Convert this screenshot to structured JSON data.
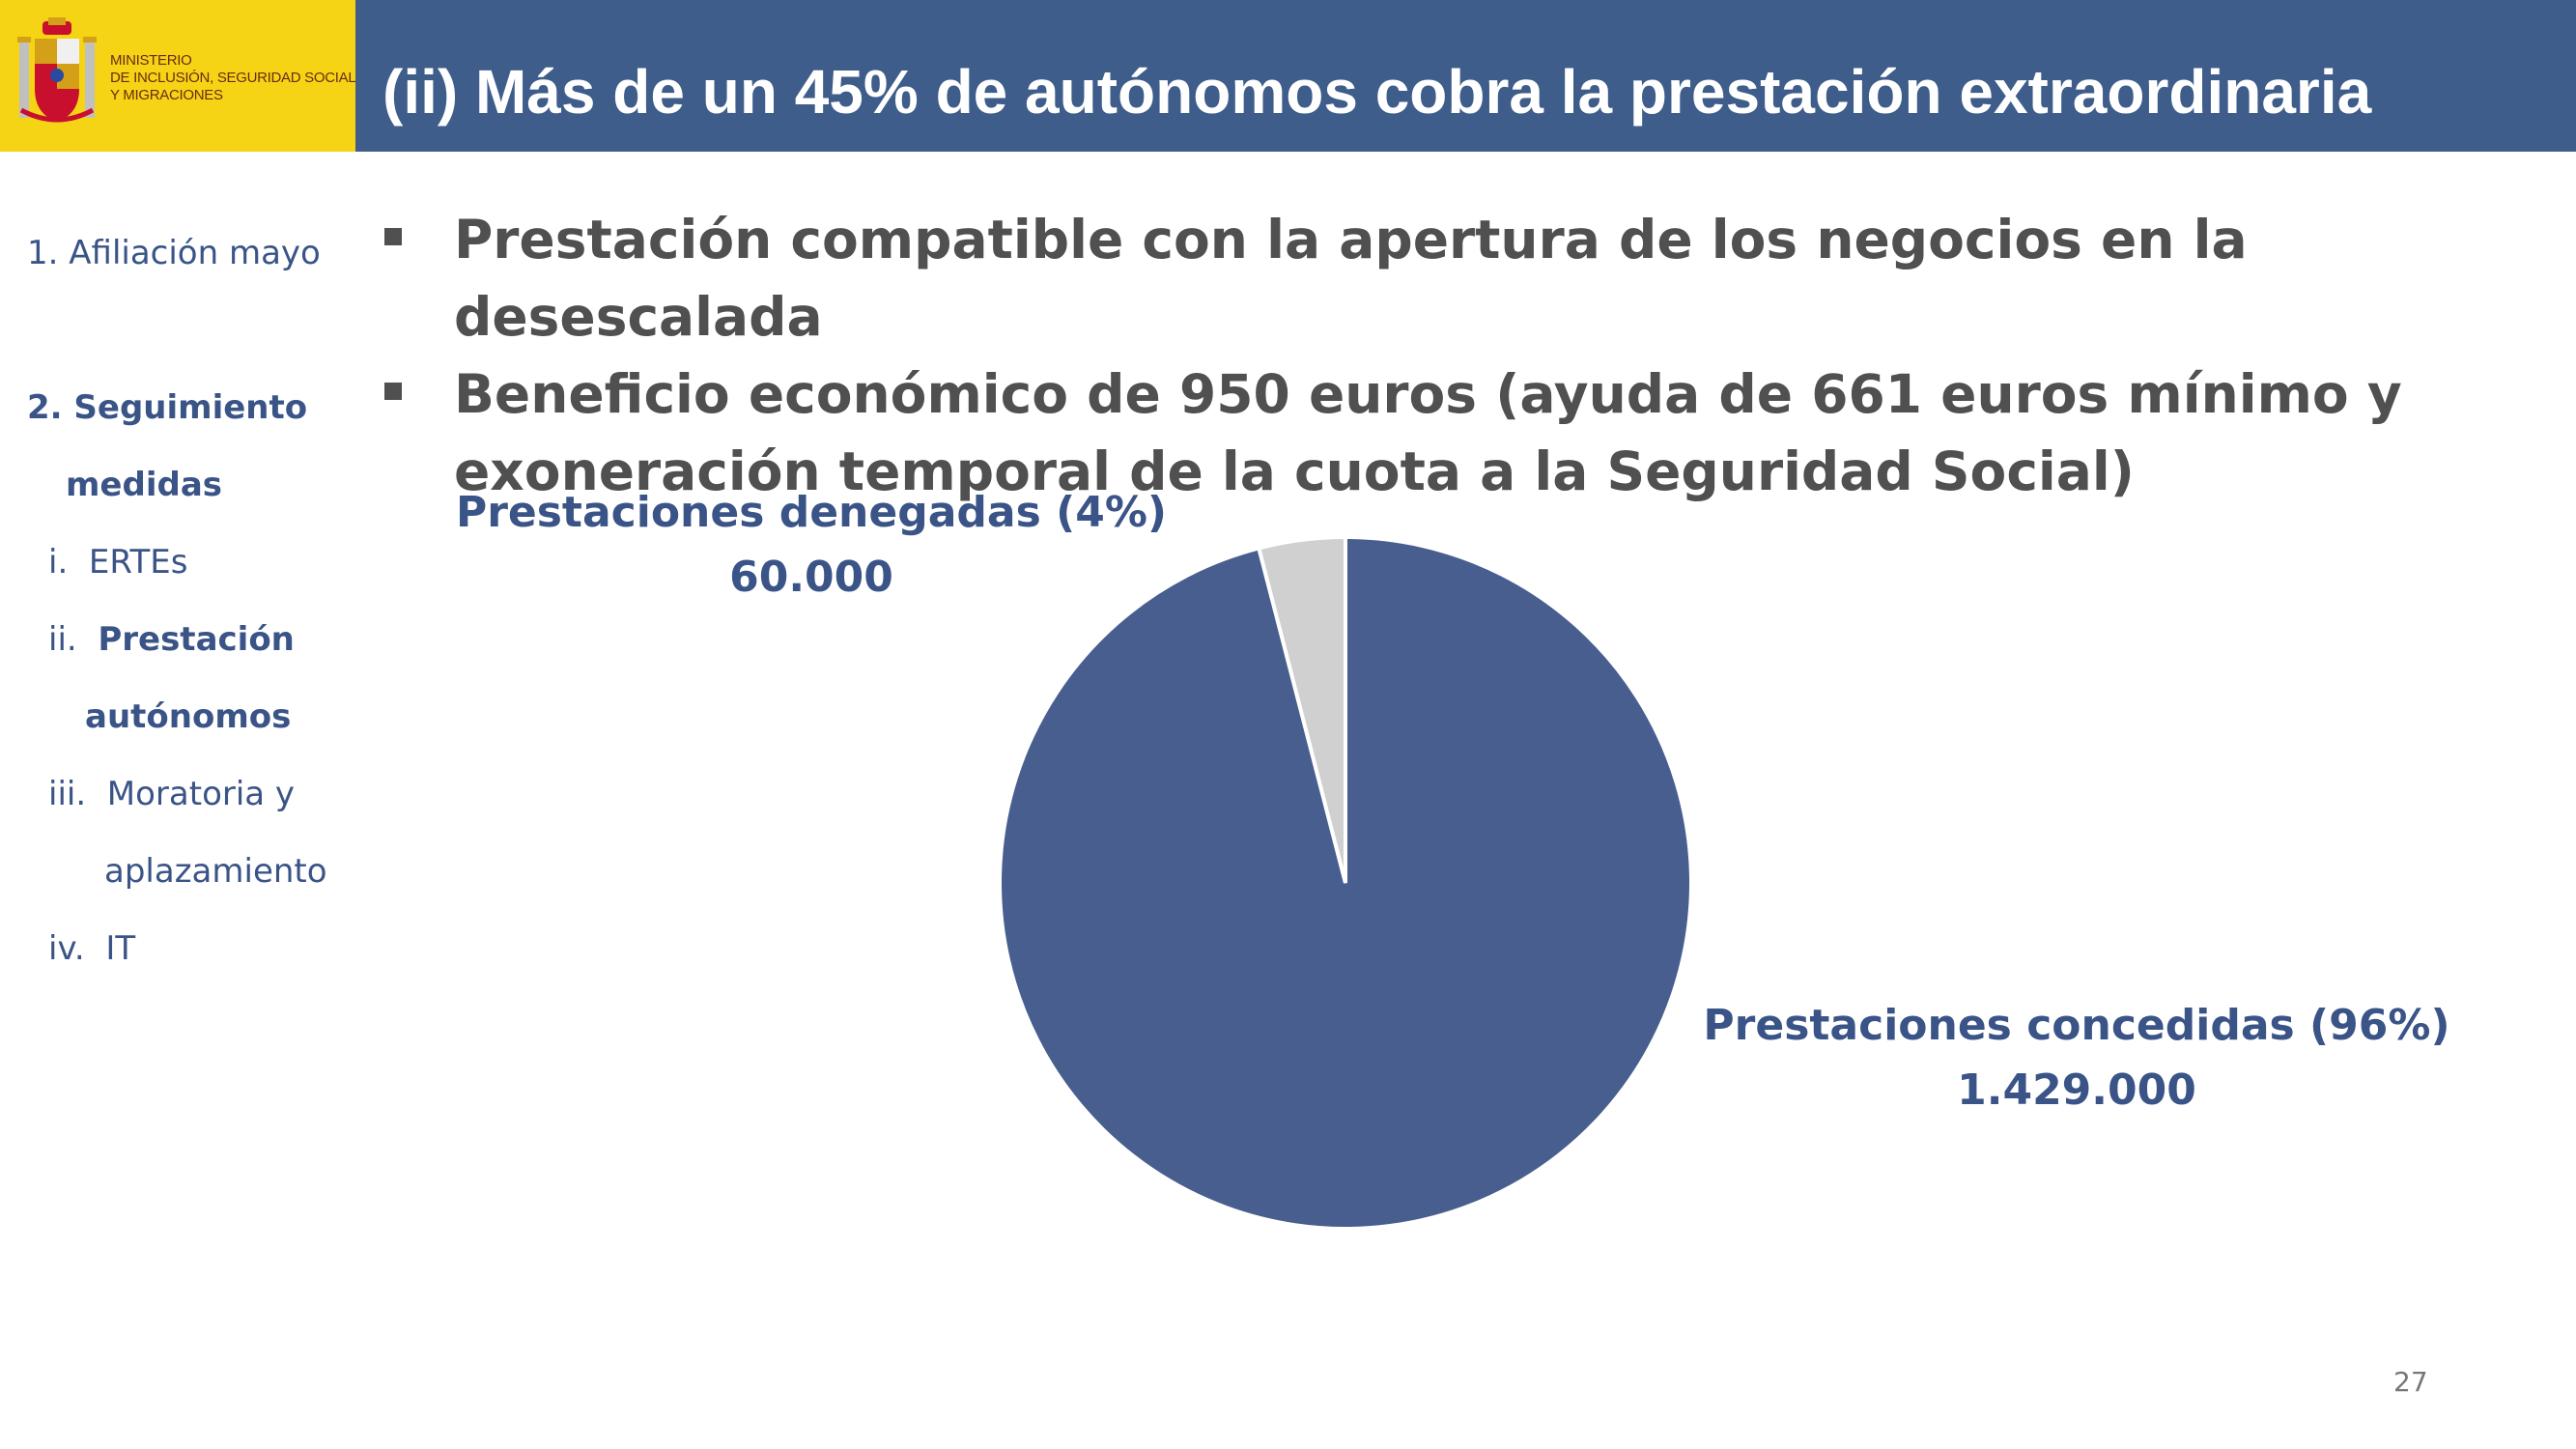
{
  "header": {
    "ministry_lines": [
      "MINISTERIO",
      "DE INCLUSIÓN, SEGURIDAD SOCIAL",
      "Y MIGRACIONES"
    ],
    "title": "(ii) Más de un 45% de autónomos cobra la prestación extraordinaria"
  },
  "sidebar": {
    "items": [
      {
        "num": "1.",
        "label": "Afiliación mayo"
      },
      {
        "num": "2.",
        "label": "Seguimiento"
      },
      {
        "num": "",
        "label": "medidas"
      },
      {
        "num": "i.",
        "label": "ERTEs"
      },
      {
        "num": "ii.",
        "label": "Prestación"
      },
      {
        "num": "",
        "label": "autónomos"
      },
      {
        "num": "iii.",
        "label": "Moratoria y"
      },
      {
        "num": "",
        "label": "aplazamiento"
      },
      {
        "num": "iv.",
        "label": "IT"
      }
    ]
  },
  "bullets": [
    "Prestación compatible con la apertura de los negocios en la desescalada",
    "Beneficio económico de 950 euros (ayuda de 661 euros mínimo y exoneración temporal de la cuota a la Seguridad Social)"
  ],
  "chart_data": {
    "type": "pie",
    "slices": [
      {
        "label": "Prestaciones concedidas (96%)",
        "value": 1429000,
        "value_label": "1.429.000",
        "percent": 96,
        "color": "#475e8e"
      },
      {
        "label": "Prestaciones denegadas (4%)",
        "value": 60000,
        "value_label": "60.000",
        "percent": 4,
        "color": "#d0d0d0"
      }
    ]
  },
  "footer": {
    "page_number": "27"
  },
  "colors": {
    "title_bar": "#3e5d8a",
    "logo_bg": "#f5d416",
    "accent_text": "#3a5487"
  }
}
